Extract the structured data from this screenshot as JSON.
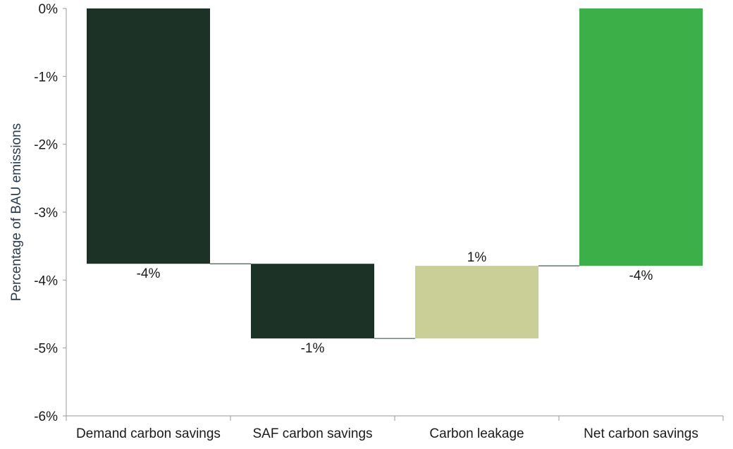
{
  "chart_data": {
    "type": "bar",
    "subtype": "waterfall",
    "title": "",
    "xlabel": "",
    "ylabel": "Percentage of BAU emissions",
    "ylim": [
      -6,
      0
    ],
    "yticks": [
      0,
      -1,
      -2,
      -3,
      -4,
      -5,
      -6
    ],
    "ytick_labels": [
      "0%",
      "-1%",
      "-2%",
      "-3%",
      "-4%",
      "-5%",
      "-6%"
    ],
    "categories": [
      "Demand carbon savings",
      "SAF carbon savings",
      "Carbon leakage",
      "Net carbon savings"
    ],
    "bars": [
      {
        "category": "Demand carbon savings",
        "start": 0,
        "end": -3.76,
        "label": "-4%",
        "color": "#1c3227"
      },
      {
        "category": "SAF carbon savings",
        "start": -3.76,
        "end": -4.86,
        "label": "-1%",
        "color": "#1c3227"
      },
      {
        "category": "Carbon leakage",
        "start": -4.86,
        "end": -3.79,
        "label": "1%",
        "color": "#c9cf96"
      },
      {
        "category": "Net carbon savings",
        "start": 0,
        "end": -3.79,
        "label": "-4%",
        "color": "#3daf48"
      }
    ],
    "grid": false,
    "legend": "none"
  }
}
